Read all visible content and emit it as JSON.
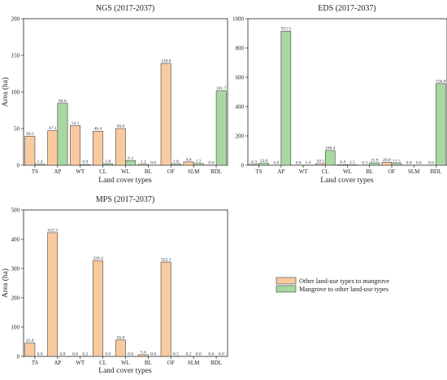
{
  "colors": {
    "other_to_mangrove": "#f9c9a0",
    "mangrove_to_other": "#a7d8a0",
    "bar_stroke": "#444444"
  },
  "legend": {
    "items": [
      "Other land-use types to mangrove",
      "Mangrove to other land-use types"
    ]
  },
  "chart_data": [
    {
      "type": "bar",
      "title": "NGS (2017-2037)",
      "xlabel": "Land cover types",
      "ylabel": "Area (ha)",
      "ylim": [
        0,
        200
      ],
      "yticks": [
        0,
        50,
        100,
        150,
        200
      ],
      "categories": [
        "TS",
        "AP",
        "WT",
        "CL",
        "WL",
        "BL",
        "OF",
        "SLM",
        "BDL"
      ],
      "series": [
        {
          "name": "Other land-use types to mangrove",
          "values": [
            39.5,
            47.1,
            54.1,
            46.4,
            50.0,
            1.2,
            139.0,
            4.6,
            0.0
          ],
          "labels": [
            "39.5",
            "47.1",
            "54.1",
            "46.4",
            "50.0",
            "1.2",
            "139.0",
            "4.6",
            "0.0"
          ]
        },
        {
          "name": "Mangrove to other land-use types",
          "values": [
            1.4,
            84.6,
            0.9,
            1.8,
            6.2,
            0.0,
            1.8,
            2.2,
            101.7
          ],
          "labels": [
            "1.4",
            "84.6",
            "0.9",
            "1.8",
            "6.2",
            "0.0",
            "1.8",
            "2.2",
            "101.7"
          ]
        }
      ]
    },
    {
      "type": "bar",
      "title": "EDS (2017-2037)",
      "xlabel": "Land cover types",
      "ylabel": "",
      "ylim": [
        0,
        1000
      ],
      "yticks": [
        0,
        200,
        400,
        600,
        800,
        1000
      ],
      "categories": [
        "TS",
        "AP",
        "WT",
        "CL",
        "WL",
        "BL",
        "OF",
        "SLM",
        "BDL"
      ],
      "series": [
        {
          "name": "Other land-use types to mangrove",
          "values": [
            6.3,
            0.0,
            0.8,
            10.5,
            4.4,
            0.3,
            20.8,
            0.8,
            0.0
          ],
          "labels": [
            "6.3",
            "0.0",
            "0.8",
            "10.5",
            "4.4",
            "0.3",
            "20.8",
            "0.8",
            "0.0"
          ]
        },
        {
          "name": "Mangrove to other land-use types",
          "values": [
            13.6,
            915.5,
            1.4,
            100.4,
            2.5,
            15.9,
            12.5,
            0.0,
            556.8
          ],
          "labels": [
            "13.6",
            "915.5",
            "1.4",
            "100.4",
            "2.5",
            "15.9",
            "12.5",
            "0.0",
            "556.8"
          ]
        }
      ]
    },
    {
      "type": "bar",
      "title": "MPS (2017-2037)",
      "xlabel": "Land cover types",
      "ylabel": "Area (ha)",
      "ylim": [
        0,
        500
      ],
      "yticks": [
        0,
        100,
        200,
        300,
        400,
        500
      ],
      "categories": [
        "TS",
        "AP",
        "WT",
        "CL",
        "WL",
        "BL",
        "OF",
        "SLM",
        "BDL"
      ],
      "series": [
        {
          "name": "Other land-use types to mangrove",
          "values": [
            45.8,
            422.3,
            0.0,
            326.4,
            56.0,
            5.6,
            322.1,
            0.2,
            0.0
          ],
          "labels": [
            "45.8",
            "422.3",
            "0.0",
            "326.4",
            "56.0",
            "5.6",
            "322.1",
            "0.2",
            "0.0"
          ]
        },
        {
          "name": "Mangrove to other land-use types",
          "values": [
            0.0,
            0.0,
            0.2,
            0.0,
            0.0,
            0.0,
            0.5,
            0.0,
            0.0
          ],
          "labels": [
            "0.0",
            "0.0",
            "0.2",
            "0.0",
            "0.0",
            "0.0",
            "0.5",
            "0.0",
            "0.0"
          ]
        }
      ]
    }
  ]
}
